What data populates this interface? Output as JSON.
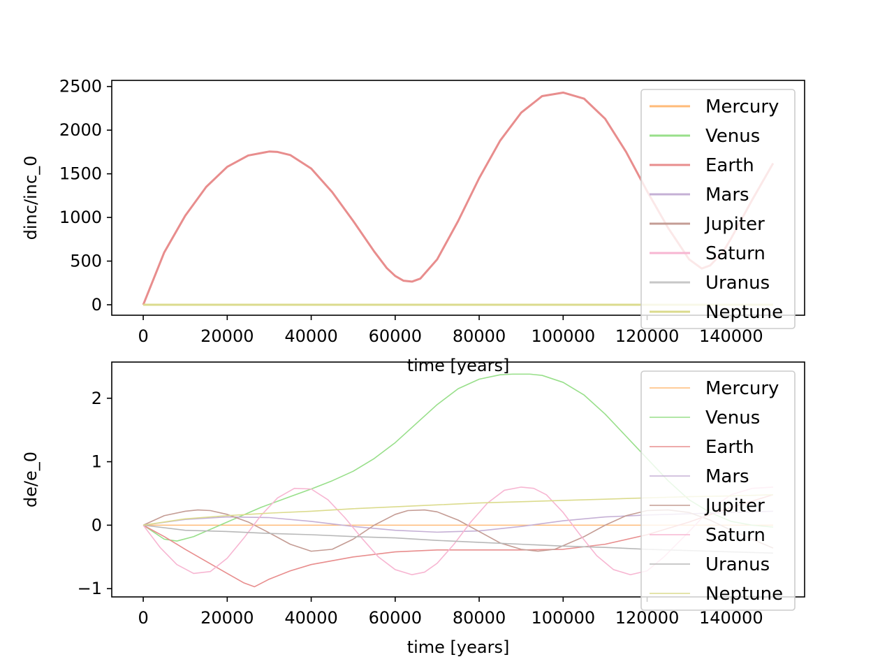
{
  "chart_data": [
    {
      "type": "line",
      "title": "",
      "xlabel": "time [years]",
      "ylabel": "dinc/inc_0",
      "xlim": [
        -7500,
        157500
      ],
      "ylim": [
        -120,
        2570
      ],
      "xticks": [
        0,
        20000,
        40000,
        60000,
        80000,
        100000,
        120000,
        140000
      ],
      "yticks": [
        0,
        500,
        1000,
        1500,
        2000,
        2500
      ],
      "legend_position": "right",
      "series": [
        {
          "name": "Mercury",
          "color": "#ffbb78",
          "x": [
            0,
            150000
          ],
          "y": [
            0,
            0
          ]
        },
        {
          "name": "Venus",
          "color": "#98df8a",
          "x": [
            0,
            150000
          ],
          "y": [
            0,
            0
          ]
        },
        {
          "name": "Earth",
          "color": "#e88d8d",
          "x": [
            0,
            5000,
            10000,
            15000,
            20000,
            25000,
            30000,
            32000,
            35000,
            40000,
            45000,
            50000,
            55000,
            58000,
            60000,
            62000,
            64000,
            66000,
            70000,
            75000,
            80000,
            85000,
            90000,
            95000,
            100000,
            105000,
            110000,
            115000,
            120000,
            125000,
            130000,
            133000,
            135000,
            138000,
            140000,
            145000,
            150000
          ],
          "y": [
            0,
            600,
            1020,
            1350,
            1580,
            1710,
            1755,
            1750,
            1715,
            1560,
            1290,
            960,
            610,
            420,
            330,
            275,
            265,
            300,
            520,
            960,
            1450,
            1880,
            2200,
            2390,
            2430,
            2360,
            2130,
            1750,
            1300,
            880,
            520,
            415,
            450,
            600,
            760,
            1200,
            1620
          ]
        },
        {
          "name": "Mars",
          "color": "#c5b0d5",
          "x": [
            0,
            150000
          ],
          "y": [
            0,
            0
          ]
        },
        {
          "name": "Jupiter",
          "color": "#c49c94",
          "x": [
            0,
            150000
          ],
          "y": [
            0,
            0
          ]
        },
        {
          "name": "Saturn",
          "color": "#f7b6d2",
          "x": [
            0,
            150000
          ],
          "y": [
            0,
            0
          ]
        },
        {
          "name": "Uranus",
          "color": "#c7c7c7",
          "x": [
            0,
            150000
          ],
          "y": [
            0,
            0
          ]
        },
        {
          "name": "Neptune",
          "color": "#dbdb8d",
          "x": [
            0,
            150000
          ],
          "y": [
            0,
            0
          ]
        }
      ]
    },
    {
      "type": "line",
      "title": "",
      "xlabel": "time [years]",
      "ylabel": "de/e_0",
      "xlim": [
        -7500,
        157500
      ],
      "ylim": [
        -1.13,
        2.57
      ],
      "xticks": [
        0,
        20000,
        40000,
        60000,
        80000,
        100000,
        120000,
        140000
      ],
      "yticks": [
        -1,
        0,
        1,
        2
      ],
      "legend_position": "right",
      "series": [
        {
          "name": "Mercury",
          "color": "#ffbb78",
          "x": [
            0,
            150000
          ],
          "y": [
            0,
            0
          ]
        },
        {
          "name": "Venus",
          "color": "#98df8a",
          "x": [
            0,
            5000,
            8000,
            12000,
            20000,
            28000,
            35000,
            40000,
            45000,
            50000,
            55000,
            60000,
            65000,
            70000,
            75000,
            80000,
            85000,
            88000,
            92000,
            95000,
            100000,
            105000,
            110000,
            115000,
            120000,
            125000,
            130000,
            135000,
            140000,
            145000,
            150000
          ],
          "y": [
            0,
            -0.22,
            -0.25,
            -0.18,
            0.05,
            0.28,
            0.45,
            0.57,
            0.7,
            0.85,
            1.05,
            1.3,
            1.6,
            1.9,
            2.15,
            2.3,
            2.37,
            2.38,
            2.38,
            2.36,
            2.25,
            2.05,
            1.75,
            1.4,
            1.05,
            0.7,
            0.4,
            0.2,
            0.06,
            0.0,
            -0.03
          ]
        },
        {
          "name": "Earth",
          "color": "#e88d8d",
          "x": [
            0,
            5000,
            10000,
            15000,
            20000,
            24000,
            26500,
            30000,
            35000,
            40000,
            50000,
            60000,
            70000,
            80000,
            90000,
            100000,
            110000,
            120000,
            130000,
            140000,
            150000
          ],
          "y": [
            0,
            -0.18,
            -0.38,
            -0.57,
            -0.76,
            -0.91,
            -0.97,
            -0.85,
            -0.72,
            -0.62,
            -0.5,
            -0.42,
            -0.39,
            -0.39,
            -0.39,
            -0.38,
            -0.3,
            -0.15,
            0.05,
            0.28,
            0.48
          ]
        },
        {
          "name": "Mars",
          "color": "#c5b0d5",
          "x": [
            0,
            10000,
            20000,
            30000,
            40000,
            50000,
            60000,
            70000,
            80000,
            90000,
            100000,
            110000,
            120000,
            130000,
            140000,
            150000
          ],
          "y": [
            0,
            0.09,
            0.13,
            0.12,
            0.06,
            -0.02,
            -0.08,
            -0.11,
            -0.09,
            -0.02,
            0.07,
            0.13,
            0.16,
            0.18,
            0.2,
            0.22
          ]
        },
        {
          "name": "Jupiter",
          "color": "#c49c94",
          "x": [
            0,
            5000,
            10000,
            13000,
            16000,
            20000,
            25000,
            30000,
            35000,
            40000,
            45000,
            50000,
            55000,
            60000,
            63000,
            67000,
            70000,
            75000,
            80000,
            85000,
            90000,
            94000,
            98000,
            105000,
            110000,
            115000,
            120000,
            125000,
            130000,
            135000,
            140000,
            150000
          ],
          "y": [
            0,
            0.15,
            0.22,
            0.24,
            0.23,
            0.17,
            0.05,
            -0.12,
            -0.3,
            -0.41,
            -0.38,
            -0.22,
            0.0,
            0.17,
            0.23,
            0.24,
            0.21,
            0.08,
            -0.1,
            -0.28,
            -0.38,
            -0.41,
            -0.38,
            -0.18,
            0.0,
            0.15,
            0.23,
            0.24,
            0.2,
            0.08,
            -0.08,
            -0.36
          ]
        },
        {
          "name": "Saturn",
          "color": "#f7b6d2",
          "x": [
            0,
            4000,
            8000,
            12000,
            16000,
            20000,
            24000,
            28000,
            32000,
            36000,
            40000,
            44000,
            48000,
            52000,
            56000,
            60000,
            64000,
            67000,
            70000,
            74000,
            78000,
            82000,
            86000,
            90000,
            93000,
            96000,
            100000,
            104000,
            108000,
            112000,
            116000,
            120000,
            124000,
            130000,
            135000,
            140000,
            145000,
            150000
          ],
          "y": [
            0,
            -0.35,
            -0.62,
            -0.76,
            -0.73,
            -0.52,
            -0.2,
            0.15,
            0.43,
            0.58,
            0.57,
            0.4,
            0.12,
            -0.2,
            -0.5,
            -0.7,
            -0.78,
            -0.74,
            -0.6,
            -0.3,
            0.05,
            0.35,
            0.55,
            0.6,
            0.58,
            0.48,
            0.2,
            -0.15,
            -0.48,
            -0.7,
            -0.78,
            -0.72,
            -0.5,
            -0.1,
            0.25,
            0.48,
            0.58,
            0.6
          ]
        },
        {
          "name": "Uranus",
          "color": "#b8b8b8",
          "x": [
            0,
            10000,
            20000,
            30000,
            40000,
            50000,
            60000,
            70000,
            80000,
            90000,
            100000,
            110000,
            120000,
            130000,
            140000,
            150000
          ],
          "y": [
            0,
            -0.08,
            -0.1,
            -0.13,
            -0.15,
            -0.18,
            -0.2,
            -0.24,
            -0.27,
            -0.3,
            -0.33,
            -0.35,
            -0.38,
            -0.4,
            -0.42,
            -0.44
          ]
        },
        {
          "name": "Neptune",
          "color": "#dbdb8d",
          "x": [
            0,
            10000,
            20000,
            30000,
            40000,
            50000,
            60000,
            70000,
            80000,
            90000,
            100000,
            110000,
            120000,
            130000,
            140000,
            150000
          ],
          "y": [
            0,
            0.1,
            0.15,
            0.19,
            0.22,
            0.26,
            0.29,
            0.32,
            0.35,
            0.37,
            0.39,
            0.41,
            0.43,
            0.45,
            0.46,
            0.48
          ]
        }
      ]
    }
  ]
}
